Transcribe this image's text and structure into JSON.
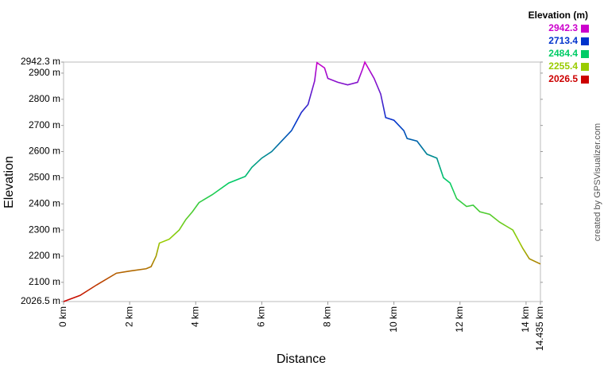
{
  "chart_data": {
    "type": "line",
    "x_label": "Distance",
    "y_label": "Elevation",
    "credit": "created by GPSVisualizer.com",
    "legend_title": "Elevation (m)",
    "color_scale": [
      {
        "value": 2942.3,
        "color": "#cc00cc"
      },
      {
        "value": 2713.4,
        "color": "#0033cc"
      },
      {
        "value": 2484.4,
        "color": "#00cc66"
      },
      {
        "value": 2255.4,
        "color": "#99cc00"
      },
      {
        "value": 2026.5,
        "color": "#cc0000"
      }
    ],
    "xlim": [
      0,
      14.435
    ],
    "ylim": [
      2026.5,
      2942.3
    ],
    "xticks": [
      {
        "value": 0,
        "label": "0 km"
      },
      {
        "value": 2,
        "label": "2 km"
      },
      {
        "value": 4,
        "label": "4 km"
      },
      {
        "value": 6,
        "label": "6 km"
      },
      {
        "value": 8,
        "label": "8 km"
      },
      {
        "value": 10,
        "label": "10 km"
      },
      {
        "value": 12,
        "label": "12 km"
      },
      {
        "value": 14,
        "label": "14 km"
      },
      {
        "value": 14.435,
        "label": "14.435 km"
      }
    ],
    "yticks": [
      {
        "value": 2026.5,
        "label": "2026.5 m"
      },
      {
        "value": 2100,
        "label": "2100 m"
      },
      {
        "value": 2200,
        "label": "2200 m"
      },
      {
        "value": 2300,
        "label": "2300 m"
      },
      {
        "value": 2400,
        "label": "2400 m"
      },
      {
        "value": 2500,
        "label": "2500 m"
      },
      {
        "value": 2600,
        "label": "2600 m"
      },
      {
        "value": 2700,
        "label": "2700 m"
      },
      {
        "value": 2800,
        "label": "2800 m"
      },
      {
        "value": 2900,
        "label": "2900 m"
      },
      {
        "value": 2942.3,
        "label": "2942.3 m"
      }
    ],
    "x": [
      0,
      0.5,
      1.0,
      1.6,
      2.0,
      2.5,
      2.65,
      2.8,
      2.9,
      3.2,
      3.5,
      3.7,
      3.9,
      4.1,
      4.5,
      5.0,
      5.5,
      5.7,
      6.0,
      6.3,
      6.6,
      6.9,
      7.2,
      7.4,
      7.6,
      7.67,
      7.9,
      8.0,
      8.3,
      8.6,
      8.9,
      9.05,
      9.12,
      9.4,
      9.6,
      9.75,
      10.0,
      10.3,
      10.4,
      10.7,
      11.0,
      11.3,
      11.5,
      11.7,
      11.9,
      12.2,
      12.4,
      12.6,
      12.9,
      13.2,
      13.6,
      13.9,
      14.1,
      14.435
    ],
    "series": [
      {
        "name": "Elevation",
        "values": [
          2026.5,
          2050,
          2090,
          2135,
          2143,
          2152,
          2160,
          2200,
          2250,
          2265,
          2300,
          2340,
          2370,
          2405,
          2435,
          2480,
          2505,
          2540,
          2575,
          2600,
          2640,
          2680,
          2750,
          2780,
          2870,
          2940,
          2920,
          2880,
          2865,
          2855,
          2865,
          2915,
          2942,
          2880,
          2820,
          2730,
          2720,
          2680,
          2650,
          2640,
          2590,
          2575,
          2500,
          2480,
          2420,
          2390,
          2395,
          2370,
          2360,
          2330,
          2300,
          2230,
          2190,
          2170
        ]
      }
    ]
  }
}
